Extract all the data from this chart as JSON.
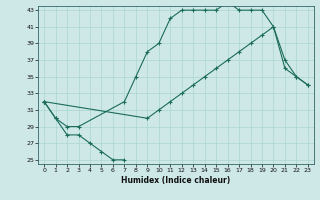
{
  "xlabel": "Humidex (Indice chaleur)",
  "bg_color": "#cee8e8",
  "line_color": "#1a6b5a",
  "grid_color": "#aad4d4",
  "xlim": [
    -0.5,
    23.5
  ],
  "ylim": [
    24.5,
    43.5
  ],
  "xticks": [
    0,
    1,
    2,
    3,
    4,
    5,
    6,
    7,
    8,
    9,
    10,
    11,
    12,
    13,
    14,
    15,
    16,
    17,
    18,
    19,
    20,
    21,
    22,
    23
  ],
  "yticks": [
    25,
    27,
    29,
    31,
    33,
    35,
    37,
    39,
    41,
    43
  ],
  "s1_x": [
    0,
    1,
    2,
    3,
    4,
    5,
    6,
    7
  ],
  "s1_y": [
    32,
    30,
    28,
    28,
    27,
    26,
    25,
    25
  ],
  "s2_x": [
    0,
    1,
    2,
    3,
    7,
    8,
    9,
    10,
    11,
    12,
    13,
    14,
    15,
    16,
    17,
    18,
    19,
    20,
    21,
    22,
    23
  ],
  "s2_y": [
    32,
    30,
    29,
    29,
    32,
    35,
    38,
    39,
    42,
    43,
    43,
    43,
    43,
    44,
    43,
    43,
    43,
    41,
    37,
    35,
    34
  ],
  "s3_x": [
    0,
    9,
    10,
    11,
    12,
    13,
    14,
    15,
    16,
    17,
    18,
    19,
    20,
    21,
    22,
    23
  ],
  "s3_y": [
    32,
    30,
    31,
    32,
    33,
    34,
    35,
    36,
    37,
    38,
    39,
    40,
    41,
    36,
    35,
    34
  ],
  "xlabel_fontsize": 5.5,
  "tick_fontsize": 4.5,
  "linewidth": 0.8,
  "markersize": 3.5
}
